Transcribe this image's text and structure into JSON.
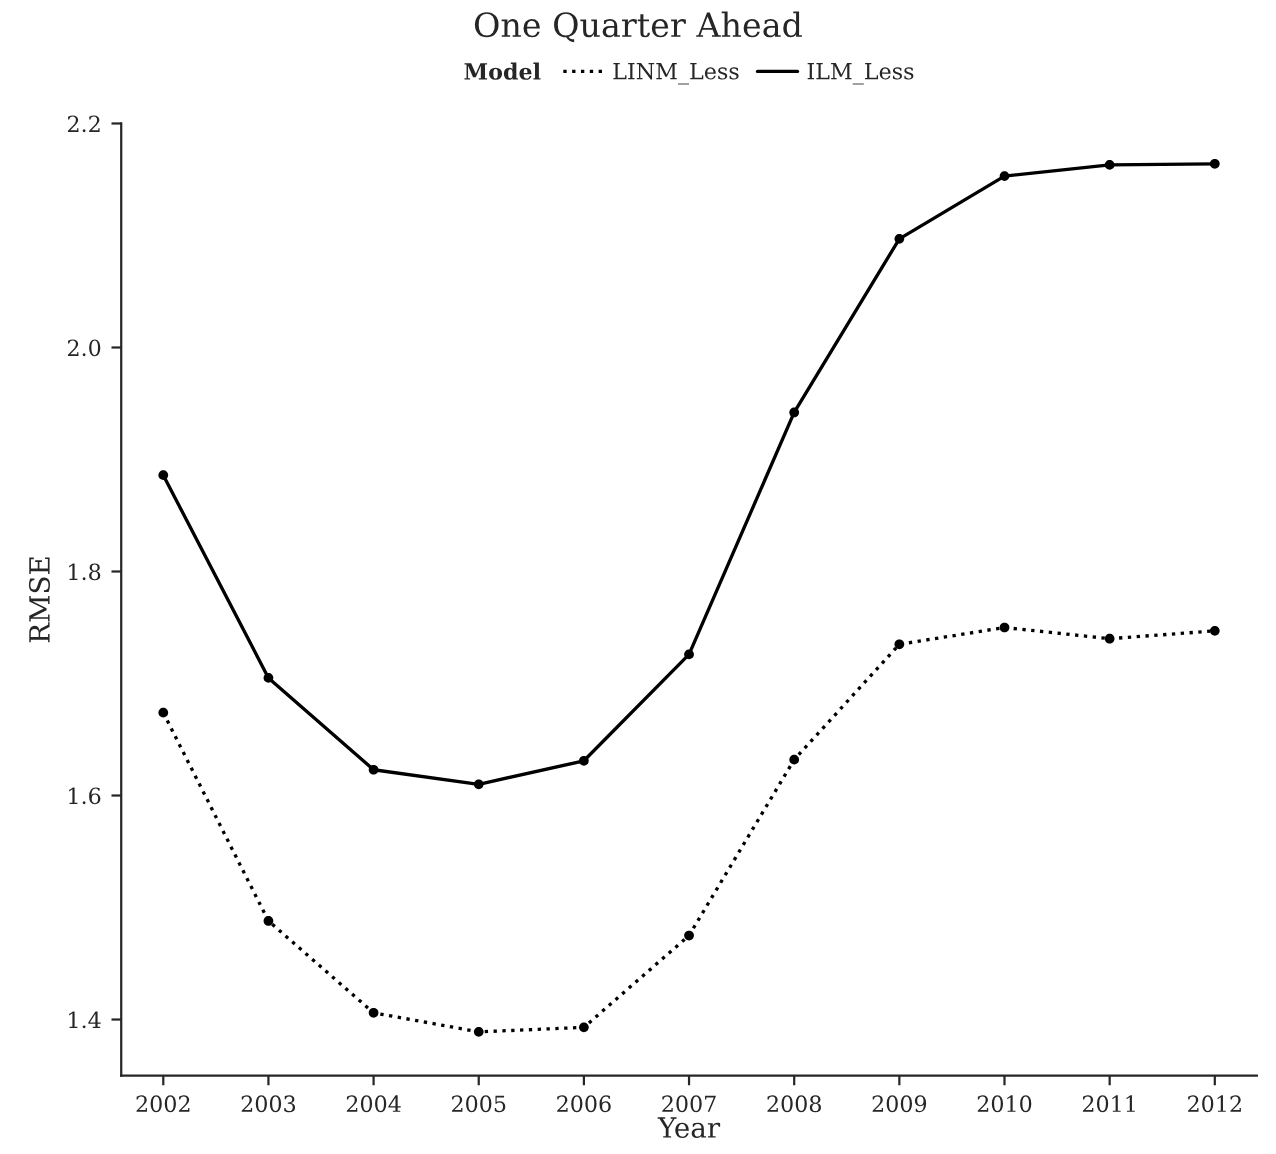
{
  "chart_data": {
    "type": "line",
    "title": "One Quarter Ahead",
    "xlabel": "Year",
    "ylabel": "RMSE",
    "legend_title": "Model",
    "categories": [
      "2002",
      "2003",
      "2004",
      "2005",
      "2006",
      "2007",
      "2008",
      "2009",
      "2010",
      "2011",
      "2012"
    ],
    "series": [
      {
        "name": "LINM_Less",
        "color": "#000000",
        "line_style": "dotted",
        "values": [
          1.674,
          1.488,
          1.406,
          1.389,
          1.393,
          1.475,
          1.632,
          1.735,
          1.75,
          1.74,
          1.747
        ]
      },
      {
        "name": "ILM_Less",
        "color": "#000000",
        "line_style": "solid",
        "values": [
          1.886,
          1.705,
          1.623,
          1.61,
          1.631,
          1.726,
          1.942,
          2.097,
          2.153,
          2.163,
          2.164
        ]
      }
    ],
    "ylim": [
      1.35,
      2.2
    ],
    "yticks": [
      1.4,
      1.6,
      1.8,
      {
        "value": 2,
        "label": "2.0"
      },
      2.2
    ],
    "grid": false,
    "legend": "top",
    "marker": "circle"
  }
}
